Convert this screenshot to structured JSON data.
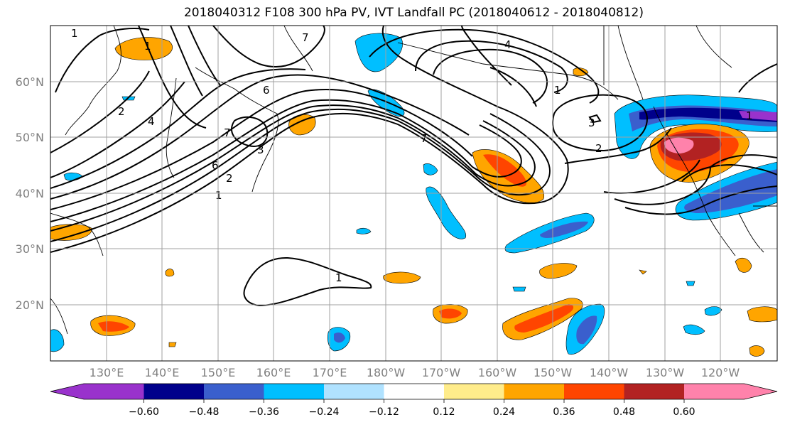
{
  "title": "2018040312 F108 300 hPa PV, IVT Landfall PC (2018040612 - 2018040812)",
  "lat_labels": [
    "60°N",
    "50°N",
    "40°N",
    "30°N",
    "20°N"
  ],
  "lon_labels": [
    "130°E",
    "140°E",
    "150°E",
    "160°E",
    "170°E",
    "180°W",
    "170°W",
    "160°W",
    "150°W",
    "140°W",
    "130°W",
    "120°W"
  ],
  "colorbar": {
    "colors": [
      "#9932cc",
      "#00008b",
      "#3a5fcd",
      "#00bfff",
      "#b0e2ff",
      "#ffffff",
      "#ffec8b",
      "#ffa500",
      "#ff4500",
      "#b22222",
      "#ff82ab"
    ],
    "tick_labels": [
      "−0.60",
      "−0.48",
      "−0.36",
      "−0.24",
      "−0.12",
      "0.12",
      "0.24",
      "0.36",
      "0.48",
      "0.60"
    ]
  },
  "contour_labels": [
    "1",
    "4",
    "7",
    "1",
    "6",
    "2",
    "4",
    "7",
    "6",
    "3",
    "2",
    "1",
    "1",
    "3",
    "2",
    "7",
    "1",
    "1"
  ]
}
